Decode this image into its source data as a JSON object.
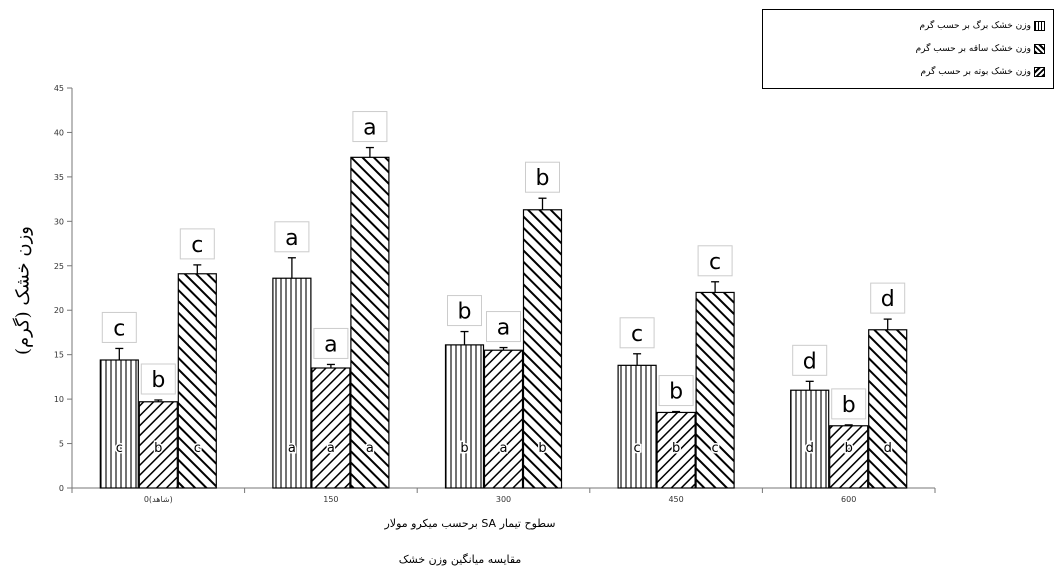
{
  "chart_data": {
    "type": "bar",
    "categories": [
      "0(شاهد)",
      "150",
      "300",
      "450",
      "600"
    ],
    "ylim": [
      0,
      45
    ],
    "yticks": [
      0,
      5,
      10,
      15,
      20,
      25,
      30,
      35,
      40,
      45
    ],
    "ytick_labels": [
      "0",
      "5",
      "10",
      "15",
      "20",
      "25",
      "30",
      "35",
      "40",
      "45"
    ],
    "ylabel": "وزن خشک (گرم)",
    "xlabel": "سطوح تیمار SA برحسب میکرو مولار",
    "subtitle": "مقایسه میانگین وزن خشک",
    "grid": false,
    "legend_position": "top-right",
    "series": [
      {
        "name": "وزن خشک برگ بر حسب گرم",
        "pattern": "vertical",
        "values": [
          14.4,
          23.6,
          16.1,
          13.8,
          11.0
        ],
        "errors": [
          1.3,
          2.3,
          1.5,
          1.3,
          1.0
        ],
        "top_letters": [
          "c",
          "a",
          "b",
          "c",
          "d"
        ],
        "inner_letters": [
          "c",
          "a",
          "b",
          "c",
          "d"
        ]
      },
      {
        "name": "وزن خشک ساقه بر حسب گرم",
        "pattern": "backslash",
        "values": [
          9.7,
          13.5,
          15.5,
          8.5,
          7.0
        ],
        "errors": [
          0.2,
          0.4,
          0.3,
          0.1,
          0.1
        ],
        "top_letters": [
          "b",
          "a",
          "a",
          "b",
          "b"
        ],
        "inner_letters": [
          "b",
          "a",
          "a",
          "b",
          "b"
        ]
      },
      {
        "name": "وزن خشک بوته بر حسب گرم",
        "pattern": "slash",
        "values": [
          24.1,
          37.2,
          31.3,
          22.0,
          17.8
        ],
        "errors": [
          1.0,
          1.1,
          1.3,
          1.2,
          1.2
        ],
        "top_letters": [
          "c",
          "a",
          "b",
          "c",
          "d"
        ],
        "inner_letters": [
          "c",
          "a",
          "b",
          "c",
          "d"
        ]
      }
    ]
  },
  "colors": {
    "bar_fill": "#ffffff",
    "stroke": "#000000",
    "axis": "#777777",
    "letter_box": "#cccccc"
  }
}
